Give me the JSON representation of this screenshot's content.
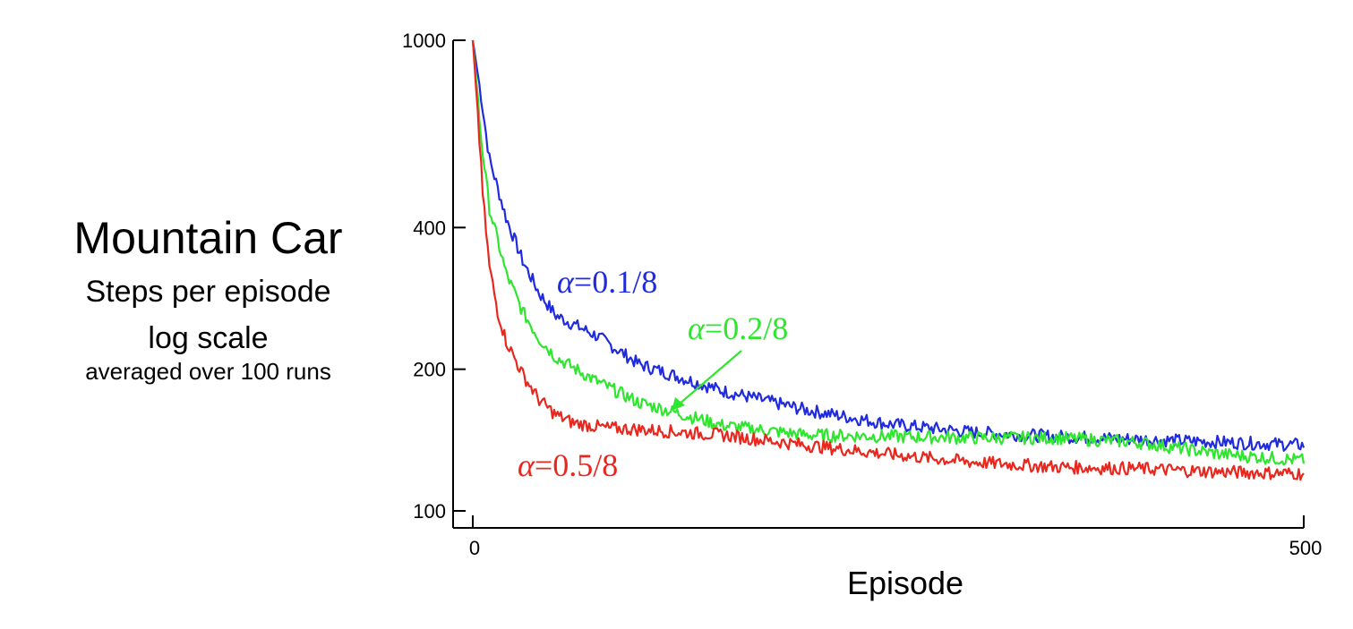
{
  "side_text": {
    "title": "Mountain Car",
    "line2": "Steps per episode",
    "line3": "log scale",
    "line4": "averaged over 100 runs"
  },
  "chart_data": {
    "type": "line",
    "xlabel": "Episode",
    "ylabel": "Steps per episode",
    "yscale": "log",
    "xlim": [
      0,
      500
    ],
    "ylim": [
      100,
      1000
    ],
    "x_ticks": [
      0,
      500
    ],
    "y_ticks": [
      100,
      200,
      400,
      1000
    ],
    "x_tick_labels": [
      "0",
      "500"
    ],
    "y_tick_labels": [
      "100",
      "200",
      "400",
      "1000"
    ],
    "grid": false,
    "legend": "none (inline annotations)",
    "series": [
      {
        "name": "α=0.1/8",
        "annotation": {
          "greek": "α",
          "rest": "=0.1/8"
        },
        "color": "#1f2bdc",
        "x": [
          0,
          5,
          10,
          20,
          30,
          40,
          50,
          75,
          100,
          150,
          200,
          250,
          300,
          350,
          400,
          450,
          500
        ],
        "y": [
          1000,
          760,
          560,
          420,
          340,
          290,
          260,
          235,
          205,
          180,
          164,
          153,
          147,
          144,
          142,
          140,
          138
        ]
      },
      {
        "name": "α=0.2/8",
        "annotation": {
          "greek": "α",
          "rest": "=0.2/8"
        },
        "color": "#2ee62e",
        "x": [
          0,
          5,
          10,
          20,
          30,
          40,
          50,
          75,
          100,
          150,
          200,
          250,
          300,
          350,
          400,
          450,
          500
        ],
        "y": [
          1000,
          620,
          440,
          320,
          265,
          232,
          212,
          188,
          170,
          152,
          145,
          144,
          143,
          143,
          140,
          132,
          128
        ]
      },
      {
        "name": "α=0.5/8",
        "annotation": {
          "greek": "α",
          "rest": "=0.5/8"
        },
        "color": "#e8271e",
        "x": [
          0,
          3,
          6,
          10,
          15,
          20,
          30,
          40,
          50,
          60,
          80,
          100,
          150,
          200,
          250,
          300,
          350,
          400,
          450,
          500
        ],
        "y": [
          1000,
          700,
          470,
          330,
          265,
          230,
          195,
          172,
          160,
          154,
          150,
          149,
          145,
          138,
          132,
          127,
          124,
          123,
          121,
          120
        ]
      }
    ]
  }
}
